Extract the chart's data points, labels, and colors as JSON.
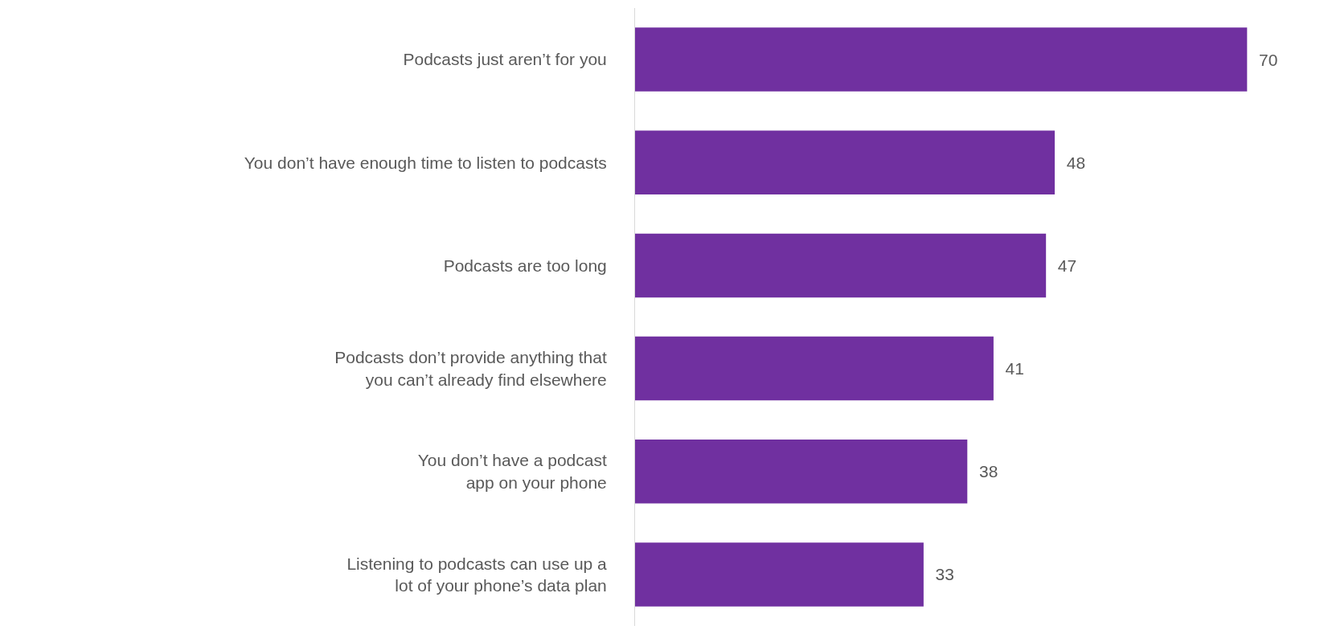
{
  "chart_data": {
    "type": "bar",
    "orientation": "horizontal",
    "data_labels": true,
    "categories": [
      "Podcasts just aren’t for you",
      "You don’t have enough time to listen to podcasts",
      "Podcasts are too long",
      "Podcasts don’t provide anything that\nyou can’t already find elsewhere",
      "You don’t have a podcast\napp on your phone",
      "Listening to podcasts can use up a\nlot of your phone’s data plan"
    ],
    "values": [
      70,
      48,
      47,
      41,
      38,
      33
    ],
    "color": "#7030a0"
  }
}
